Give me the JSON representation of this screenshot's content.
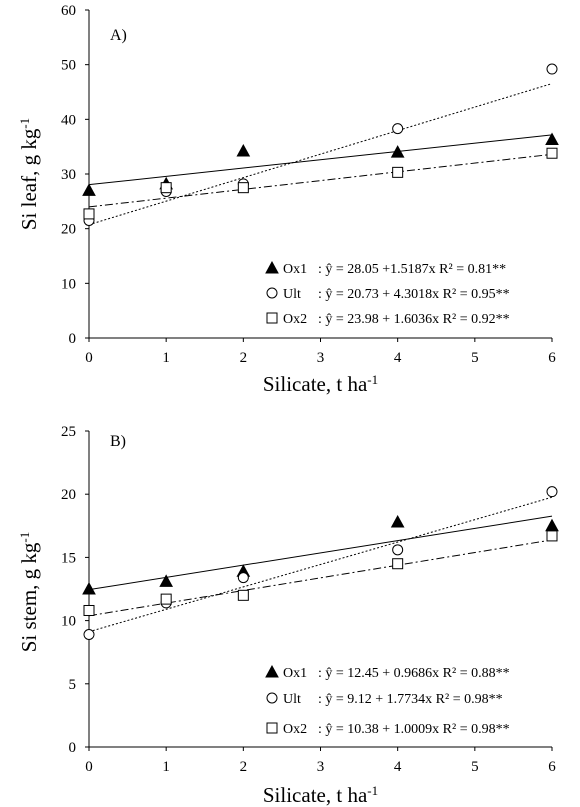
{
  "chart_data": [
    {
      "type": "scatter",
      "panel_label": "A)",
      "xlabel": "Silicate,  t ha",
      "xlabel_sup": "-1",
      "ylabel": "Si leaf,  g kg",
      "ylabel_sup": "-1",
      "xlim": [
        0,
        6
      ],
      "ylim": [
        0,
        60
      ],
      "x_ticks": [
        "0",
        "1",
        "2",
        "3",
        "4",
        "5",
        "6"
      ],
      "y_ticks": [
        "0",
        "10",
        "20",
        "30",
        "40",
        "50",
        "60"
      ],
      "grid": false,
      "legend_position": "bottom-right",
      "series": [
        {
          "name": "Ox1",
          "marker": "filled-triangle",
          "line_style": "solid",
          "x": [
            0,
            1,
            2,
            4,
            6
          ],
          "y": [
            27,
            28.2,
            34.2,
            34,
            36.3
          ],
          "fit": {
            "intercept": 28.05,
            "slope": 1.5187
          },
          "equation": ": ŷ = 28.05 +1.5187x R² = 0.81**"
        },
        {
          "name": "Ult",
          "marker": "open-circle",
          "line_style": "dotted",
          "x": [
            0,
            1,
            2,
            4,
            6
          ],
          "y": [
            21.5,
            26.8,
            28.2,
            38.3,
            49.2
          ],
          "fit": {
            "intercept": 20.73,
            "slope": 4.3018
          },
          "equation": ": ŷ = 20.73 + 4.3018x R² = 0.95**"
        },
        {
          "name": "Ox2",
          "marker": "open-square",
          "line_style": "dash-dot",
          "x": [
            0,
            1,
            2,
            4,
            6
          ],
          "y": [
            22.7,
            27.5,
            27.5,
            30.3,
            33.8
          ],
          "fit": {
            "intercept": 23.98,
            "slope": 1.6036
          },
          "equation": ": ŷ = 23.98 + 1.6036x R² = 0.92**"
        }
      ]
    },
    {
      "type": "scatter",
      "panel_label": "B)",
      "xlabel": "Silicate,  t ha",
      "xlabel_sup": "-1",
      "ylabel": "Si stem,  g kg",
      "ylabel_sup": "-1",
      "xlim": [
        0,
        6
      ],
      "ylim": [
        0,
        25
      ],
      "x_ticks": [
        "0",
        "1",
        "2",
        "3",
        "4",
        "5",
        "6"
      ],
      "y_ticks": [
        "0",
        "5",
        "10",
        "15",
        "20",
        "25"
      ],
      "grid": false,
      "legend_position": "bottom-right",
      "series": [
        {
          "name": "Ox1",
          "marker": "filled-triangle",
          "line_style": "solid",
          "x": [
            0,
            1,
            2,
            4,
            6
          ],
          "y": [
            12.5,
            13.1,
            13.9,
            17.8,
            17.5
          ],
          "fit": {
            "intercept": 12.45,
            "slope": 0.9686
          },
          "equation": ": ŷ = 12.45 + 0.9686x R² = 0.88**"
        },
        {
          "name": "Ult",
          "marker": "open-circle",
          "line_style": "dotted",
          "x": [
            0,
            1,
            2,
            4,
            6
          ],
          "y": [
            8.9,
            11.4,
            13.4,
            15.6,
            20.2
          ],
          "fit": {
            "intercept": 9.12,
            "slope": 1.7734
          },
          "equation": ": ŷ = 9.12 + 1.7734x R² = 0.98**"
        },
        {
          "name": "Ox2",
          "marker": "open-square",
          "line_style": "dash-dot",
          "x": [
            0,
            1,
            2,
            4,
            6
          ],
          "y": [
            10.8,
            11.7,
            12,
            14.5,
            16.7
          ],
          "fit": {
            "intercept": 10.38,
            "slope": 1.0009
          },
          "equation": ": ŷ = 10.38 + 1.0009x R² = 0.98**"
        }
      ]
    }
  ]
}
